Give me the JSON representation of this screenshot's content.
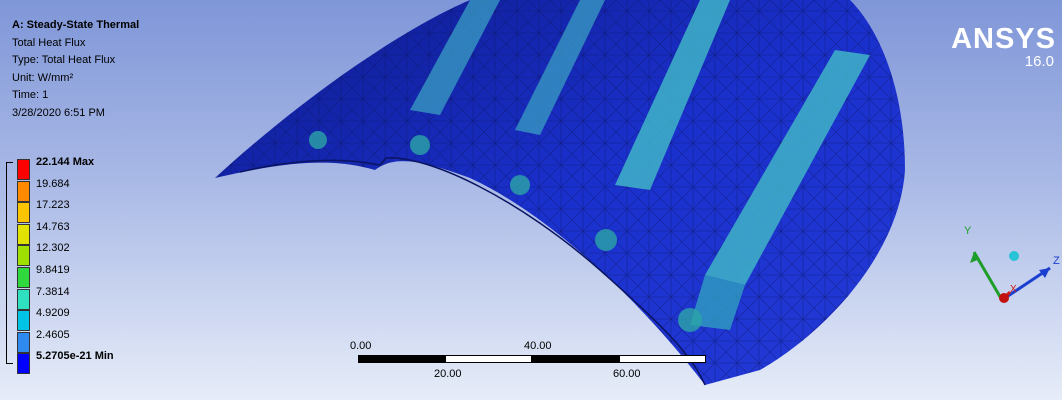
{
  "info": {
    "title": "A: Steady-State Thermal",
    "result": "Total Heat Flux",
    "type": "Type: Total Heat Flux",
    "unit": "Unit: W/mm²",
    "time": "Time: 1",
    "timestamp": "3/28/2020 6:51 PM"
  },
  "legend": {
    "labels": [
      "22.144 Max",
      "19.684",
      "17.223",
      "14.763",
      "12.302",
      "9.8419",
      "7.3814",
      "4.9209",
      "2.4605",
      "5.2705e-21 Min"
    ],
    "colors": [
      "#ff0000",
      "#ff8a00",
      "#ffc400",
      "#e2e200",
      "#9fe000",
      "#2fd83c",
      "#2fe0c0",
      "#00c4e6",
      "#2f8af0",
      "#0000ff"
    ]
  },
  "logo": {
    "brand": "ANSYS",
    "version": "16.0"
  },
  "scale": {
    "ticks_top": [
      "0.00",
      "40.00"
    ],
    "ticks_bottom": [
      "20.00",
      "60.00"
    ]
  },
  "triad": {
    "x": "X",
    "y": "Y",
    "z": "Z"
  },
  "colors": {
    "shell": "#1a2ec8",
    "stripe": "#3fb0c8",
    "mesh": "#0a1460"
  }
}
